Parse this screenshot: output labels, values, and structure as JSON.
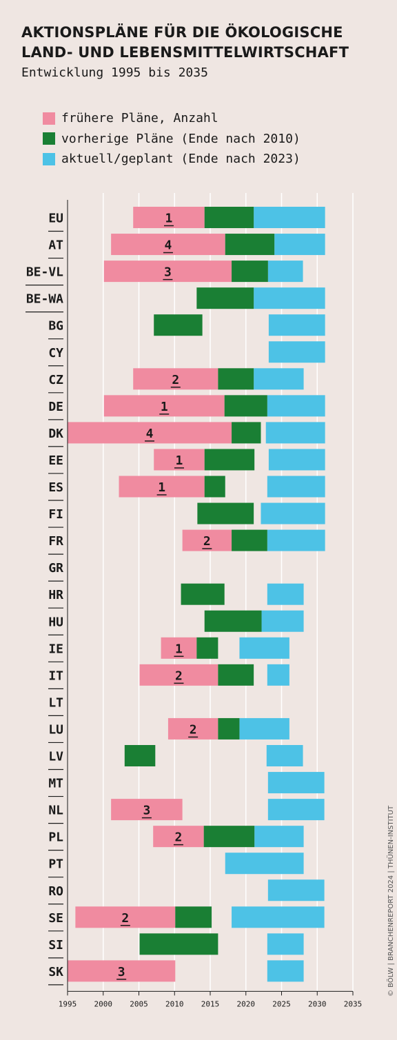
{
  "title_line1": "AKTIONSPLÄNE FÜR DIE ÖKOLOGISCHE",
  "title_line2": "LAND- UND LEBENSMITTELWIRTSCHAFT",
  "subtitle": "Entwicklung 1995 bis 2035",
  "credit": "© BÖLW | BRANCHENREPORT 2024 | THÜNEN-INSTITUT",
  "legend": [
    {
      "label": "frühere Pläne, Anzahl",
      "color": "#f08ba0"
    },
    {
      "label": "vorherige Pläne (Ende nach 2010)",
      "color": "#1a7f34"
    },
    {
      "label": "aktuell/geplant (Ende nach 2023)",
      "color": "#4dc2e6"
    }
  ],
  "chart_data": {
    "type": "bar",
    "orientation": "horizontal-range",
    "xlim": [
      1995,
      2035
    ],
    "x_ticks": [
      1995,
      2000,
      2005,
      2010,
      2015,
      2020,
      2025,
      2030,
      2035
    ],
    "grid": true,
    "colors": {
      "earlier": "#f08ba0",
      "previous": "#1a7f34",
      "current": "#4dc2e6"
    },
    "rows": [
      {
        "label": "EU",
        "earlier": [
          2004.2,
          2014.2
        ],
        "count": "1",
        "previous": [
          2014.2,
          2021.1
        ],
        "current": [
          2021.1,
          2031.1
        ]
      },
      {
        "label": "AT",
        "earlier": [
          2001.1,
          2017.1
        ],
        "count": "4",
        "previous": [
          2017.1,
          2024.0
        ],
        "current": [
          2024.0,
          2031.1
        ]
      },
      {
        "label": "BE-VL",
        "earlier": [
          2000.1,
          2018.0
        ],
        "count": "3",
        "previous": [
          2018.0,
          2023.1
        ],
        "current": [
          2023.1,
          2028.0
        ]
      },
      {
        "label": "BE-WA",
        "earlier": null,
        "count": null,
        "previous": [
          2013.1,
          2021.1
        ],
        "current": [
          2021.1,
          2031.1
        ]
      },
      {
        "label": "BG",
        "earlier": null,
        "count": null,
        "previous": [
          2007.1,
          2013.9
        ],
        "current": [
          2023.2,
          2031.1
        ]
      },
      {
        "label": "CY",
        "earlier": null,
        "count": null,
        "previous": null,
        "current": [
          2023.2,
          2031.1
        ]
      },
      {
        "label": "CZ",
        "earlier": [
          2004.2,
          2016.1
        ],
        "count": "2",
        "previous": [
          2016.1,
          2021.1
        ],
        "current": [
          2021.1,
          2028.1
        ]
      },
      {
        "label": "DE",
        "earlier": [
          2000.1,
          2017.0
        ],
        "count": "1",
        "previous": [
          2017.0,
          2023.0
        ],
        "current": [
          2023.0,
          2031.1
        ]
      },
      {
        "label": "DK",
        "earlier": [
          1995.0,
          2018.0
        ],
        "count": "4",
        "previous": [
          2018.0,
          2022.1
        ],
        "current": [
          2022.8,
          2031.1
        ]
      },
      {
        "label": "EE",
        "earlier": [
          2007.1,
          2014.2
        ],
        "count": "1",
        "previous": [
          2014.2,
          2021.2
        ],
        "current": [
          2023.2,
          2031.1
        ]
      },
      {
        "label": "ES",
        "earlier": [
          2002.2,
          2014.2
        ],
        "count": "1",
        "previous": [
          2014.2,
          2017.1
        ],
        "current": [
          2023.0,
          2031.1
        ]
      },
      {
        "label": "FI",
        "earlier": null,
        "count": null,
        "previous": [
          2013.2,
          2021.1
        ],
        "current": [
          2022.1,
          2031.1
        ]
      },
      {
        "label": "FR",
        "earlier": [
          2011.1,
          2018.0
        ],
        "count": "2",
        "previous": [
          2018.0,
          2023.0
        ],
        "current": [
          2023.0,
          2031.1
        ]
      },
      {
        "label": "GR",
        "earlier": null,
        "count": null,
        "previous": null,
        "current": null
      },
      {
        "label": "HR",
        "earlier": null,
        "count": null,
        "previous": [
          2010.9,
          2017.0
        ],
        "current": [
          2023.0,
          2028.1
        ]
      },
      {
        "label": "HU",
        "earlier": null,
        "count": null,
        "previous": [
          2014.2,
          2022.2
        ],
        "current": [
          2022.2,
          2028.1
        ]
      },
      {
        "label": "IE",
        "earlier": [
          2008.1,
          2013.1
        ],
        "count": "1",
        "previous": [
          2013.1,
          2016.1
        ],
        "current": [
          2019.1,
          2026.1
        ]
      },
      {
        "label": "IT",
        "earlier": [
          2005.1,
          2016.1
        ],
        "count": "2",
        "previous": [
          2016.1,
          2021.1
        ],
        "current": [
          2023.0,
          2026.1
        ]
      },
      {
        "label": "LT",
        "earlier": null,
        "count": null,
        "previous": null,
        "current": null
      },
      {
        "label": "LU",
        "earlier": [
          2009.1,
          2016.1
        ],
        "count": "2",
        "previous": [
          2016.1,
          2019.1
        ],
        "current": [
          2019.1,
          2026.1
        ]
      },
      {
        "label": "LV",
        "earlier": null,
        "count": null,
        "previous": [
          2003.0,
          2007.3
        ],
        "current": [
          2022.9,
          2028.0
        ]
      },
      {
        "label": "MT",
        "earlier": null,
        "count": null,
        "previous": null,
        "current": [
          2023.1,
          2031.0
        ]
      },
      {
        "label": "NL",
        "earlier": [
          2001.1,
          2011.1
        ],
        "count": "3",
        "previous": null,
        "current": [
          2023.1,
          2031.0
        ]
      },
      {
        "label": "PL",
        "earlier": [
          2007.0,
          2014.1
        ],
        "count": "2",
        "previous": [
          2014.1,
          2021.2
        ],
        "current": [
          2021.2,
          2028.1
        ]
      },
      {
        "label": "PT",
        "earlier": null,
        "count": null,
        "previous": null,
        "current": [
          2017.1,
          2028.1
        ]
      },
      {
        "label": "RO",
        "earlier": null,
        "count": null,
        "previous": null,
        "current": [
          2023.1,
          2031.0
        ]
      },
      {
        "label": "SE",
        "earlier": [
          1996.1,
          2010.1
        ],
        "count": "2",
        "previous": [
          2010.1,
          2015.2
        ],
        "current": [
          2018.0,
          2031.0
        ]
      },
      {
        "label": "SI",
        "earlier": null,
        "count": null,
        "previous": [
          2005.1,
          2016.1
        ],
        "current": [
          2023.0,
          2028.1
        ]
      },
      {
        "label": "SK",
        "earlier": [
          1995.0,
          2010.1
        ],
        "count": "3",
        "previous": null,
        "current": [
          2023.0,
          2028.1
        ]
      }
    ]
  }
}
